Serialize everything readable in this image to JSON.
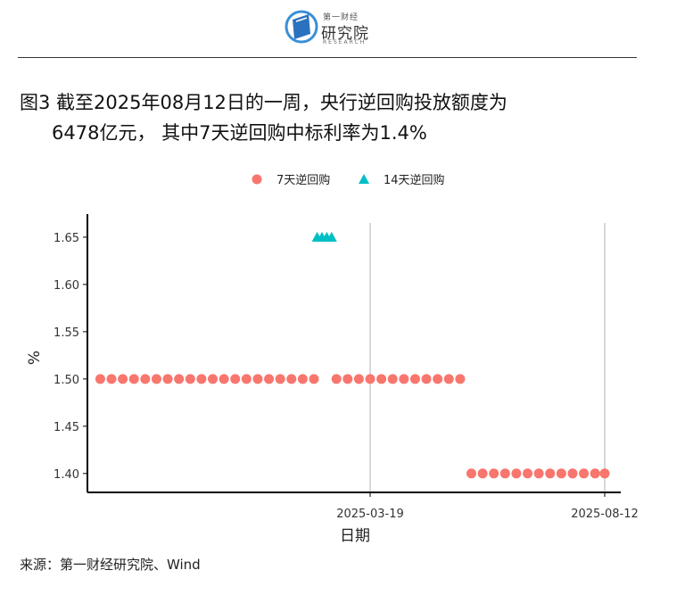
{
  "header": {
    "logo_small": "第一财经",
    "logo_main": "研究院",
    "logo_sub": "RESEARCH"
  },
  "title": {
    "line1": "图3  截至2025年08月12日的一周，央行逆回购投放额度为",
    "line2": "6478亿元， 其中7天逆回购中标利率为1.4%"
  },
  "source": "来源：第一财经研究院、Wind",
  "colors": {
    "series_7d": "#F8766D",
    "series_14d": "#00BFC4"
  },
  "chart_data": {
    "type": "scatter",
    "title": "",
    "xlabel": "日期",
    "ylabel": "%",
    "ylim": [
      1.38,
      1.665
    ],
    "y_ticks": [
      1.4,
      1.45,
      1.5,
      1.55,
      1.6,
      1.65
    ],
    "y_tick_labels": [
      "1.40",
      "1.45",
      "1.50",
      "1.55",
      "1.60",
      "1.65"
    ],
    "xlim": [
      "2024-09-24",
      "2025-08-22"
    ],
    "x_ticks": [
      "2025-03-19",
      "2025-08-12"
    ],
    "x_tick_labels": [
      "2025-03-19",
      "2025-08-12"
    ],
    "grid": "vertical major lines at x ticks",
    "legend": "top",
    "series": [
      {
        "name": "7天逆回购",
        "marker": "circle",
        "points": [
          {
            "x": "2024-10-02",
            "y": 1.5
          },
          {
            "x": "2024-10-09",
            "y": 1.5
          },
          {
            "x": "2024-10-16",
            "y": 1.5
          },
          {
            "x": "2024-10-23",
            "y": 1.5
          },
          {
            "x": "2024-10-30",
            "y": 1.5
          },
          {
            "x": "2024-11-06",
            "y": 1.5
          },
          {
            "x": "2024-11-13",
            "y": 1.5
          },
          {
            "x": "2024-11-20",
            "y": 1.5
          },
          {
            "x": "2024-11-27",
            "y": 1.5
          },
          {
            "x": "2024-12-04",
            "y": 1.5
          },
          {
            "x": "2024-12-11",
            "y": 1.5
          },
          {
            "x": "2024-12-18",
            "y": 1.5
          },
          {
            "x": "2024-12-25",
            "y": 1.5
          },
          {
            "x": "2025-01-01",
            "y": 1.5
          },
          {
            "x": "2025-01-08",
            "y": 1.5
          },
          {
            "x": "2025-01-15",
            "y": 1.5
          },
          {
            "x": "2025-01-22",
            "y": 1.5
          },
          {
            "x": "2025-01-29",
            "y": 1.5
          },
          {
            "x": "2025-02-05",
            "y": 1.5
          },
          {
            "x": "2025-02-12",
            "y": 1.5
          },
          {
            "x": "2025-02-26",
            "y": 1.5
          },
          {
            "x": "2025-03-05",
            "y": 1.5
          },
          {
            "x": "2025-03-12",
            "y": 1.5
          },
          {
            "x": "2025-03-19",
            "y": 1.5
          },
          {
            "x": "2025-03-26",
            "y": 1.5
          },
          {
            "x": "2025-04-02",
            "y": 1.5
          },
          {
            "x": "2025-04-09",
            "y": 1.5
          },
          {
            "x": "2025-04-16",
            "y": 1.5
          },
          {
            "x": "2025-04-23",
            "y": 1.5
          },
          {
            "x": "2025-04-30",
            "y": 1.5
          },
          {
            "x": "2025-05-07",
            "y": 1.5
          },
          {
            "x": "2025-05-14",
            "y": 1.5
          },
          {
            "x": "2025-05-21",
            "y": 1.4
          },
          {
            "x": "2025-05-28",
            "y": 1.4
          },
          {
            "x": "2025-06-04",
            "y": 1.4
          },
          {
            "x": "2025-06-11",
            "y": 1.4
          },
          {
            "x": "2025-06-18",
            "y": 1.4
          },
          {
            "x": "2025-06-25",
            "y": 1.4
          },
          {
            "x": "2025-07-02",
            "y": 1.4
          },
          {
            "x": "2025-07-09",
            "y": 1.4
          },
          {
            "x": "2025-07-16",
            "y": 1.4
          },
          {
            "x": "2025-07-23",
            "y": 1.4
          },
          {
            "x": "2025-07-30",
            "y": 1.4
          },
          {
            "x": "2025-08-06",
            "y": 1.4
          },
          {
            "x": "2025-08-12",
            "y": 1.4
          }
        ]
      },
      {
        "name": "14天逆回购",
        "marker": "triangle",
        "points": [
          {
            "x": "2025-02-14",
            "y": 1.65
          },
          {
            "x": "2025-02-17",
            "y": 1.65
          },
          {
            "x": "2025-02-20",
            "y": 1.65
          },
          {
            "x": "2025-02-23",
            "y": 1.65
          }
        ]
      }
    ]
  }
}
